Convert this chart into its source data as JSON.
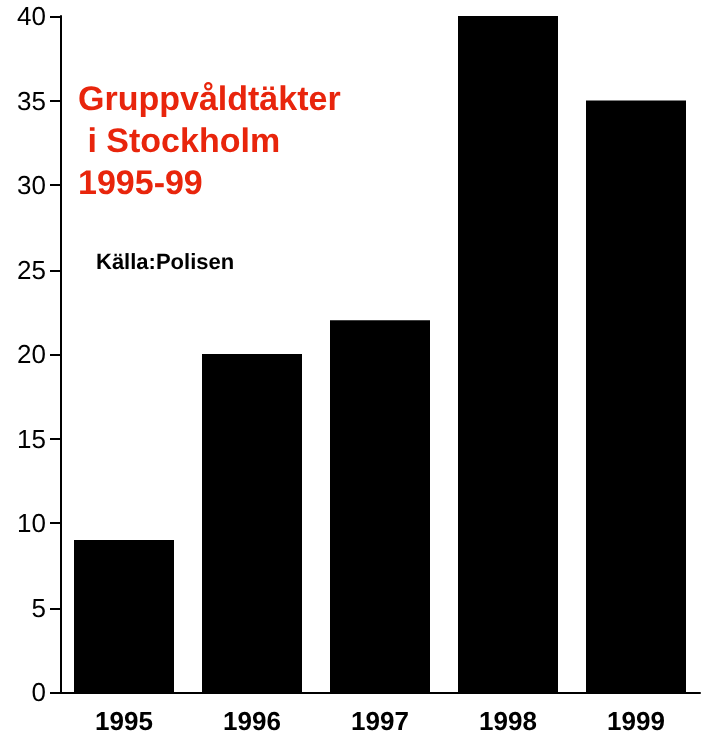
{
  "chart_data": {
    "type": "bar",
    "title": "Gruppvåldtäkter i Stockholm 1995-99",
    "annotations": [
      "Källa:Polisen"
    ],
    "categories": [
      "1995",
      "1996",
      "1997",
      "1998",
      "1999"
    ],
    "values": [
      9,
      20,
      22,
      40,
      35
    ],
    "color": "#000000",
    "ylim": [
      0,
      40
    ],
    "yticks": [
      0,
      5,
      10,
      15,
      20,
      25,
      30,
      35,
      40
    ],
    "grid": false
  }
}
